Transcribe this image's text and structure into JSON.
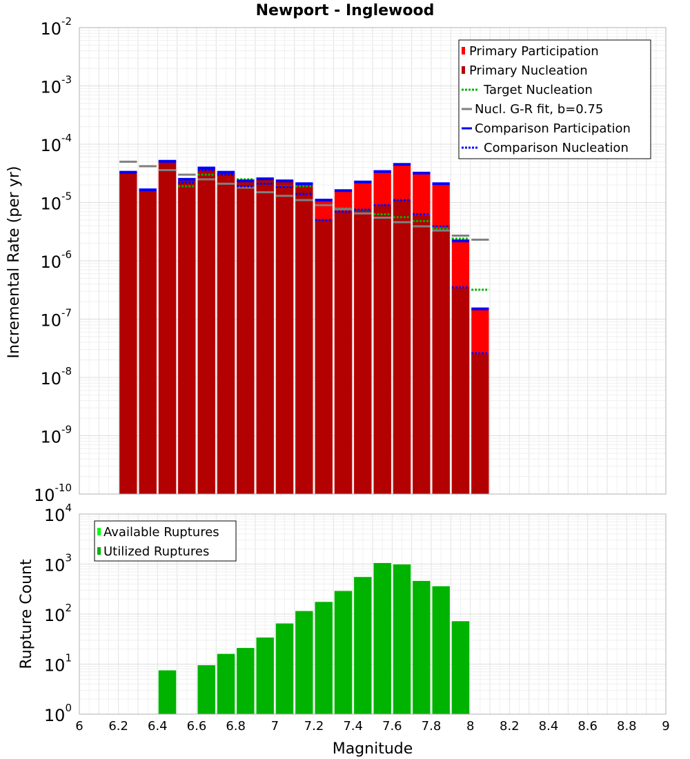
{
  "title": "Newport - Inglewood",
  "chart_data": [
    {
      "type": "bar",
      "panel": "top",
      "ylabel": "Incremental Rate (per yr)",
      "yscale": "log",
      "ylim": [
        1e-10,
        0.01
      ],
      "xlim": [
        6,
        9
      ],
      "grid": true,
      "legend_position": "top-right",
      "ytick_bases": [
        "10",
        "10",
        "10",
        "10",
        "10",
        "10",
        "10",
        "10",
        "10"
      ],
      "ytick_exponents": [
        "-10",
        "-9",
        "-8",
        "-7",
        "-6",
        "-5",
        "-4",
        "-3",
        "-2"
      ],
      "bin_width": 0.1,
      "x": [
        6.25,
        6.35,
        6.45,
        6.55,
        6.65,
        6.75,
        6.85,
        6.95,
        7.05,
        7.15,
        7.25,
        7.35,
        7.45,
        7.55,
        7.65,
        7.75,
        7.85,
        7.95,
        8.05
      ],
      "series": [
        {
          "name": "Primary Participation",
          "style": "bar",
          "color": "#ff0000",
          "values": [
            3.2e-05,
            1.6e-05,
            5e-05,
            2.4e-05,
            3.8e-05,
            3.2e-05,
            2.3e-05,
            2.5e-05,
            2.3e-05,
            2e-05,
            1.05e-05,
            1.55e-05,
            2.2e-05,
            3.3e-05,
            4.4e-05,
            3.1e-05,
            2.05e-05,
            2.1e-06,
            1.45e-07
          ]
        },
        {
          "name": "Primary Nucleation",
          "style": "bar",
          "color": "#b30000",
          "values": [
            3.2e-05,
            1.6e-05,
            5e-05,
            2.4e-05,
            3.8e-05,
            3.2e-05,
            2.3e-05,
            2.5e-05,
            2.3e-05,
            2e-05,
            5e-06,
            7e-06,
            7.5e-06,
            9e-06,
            1.1e-05,
            6e-06,
            3.6e-06,
            3.4e-07,
            2.5e-08
          ]
        },
        {
          "name": "Target Nucleation",
          "style": "dotted",
          "color": "#00b300",
          "values": [
            null,
            null,
            null,
            1.9e-05,
            3e-05,
            null,
            2.5e-05,
            2.1e-05,
            1.9e-05,
            1.9e-05,
            null,
            8e-06,
            7.4e-06,
            6.3e-06,
            5.6e-06,
            4.8e-06,
            3.6e-06,
            2.4e-06,
            3.2e-07
          ]
        },
        {
          "name": "Nucl. G-R fit, b=0.75",
          "style": "solid",
          "color": "#808080",
          "values": [
            5e-05,
            4.2e-05,
            3.6e-05,
            3e-05,
            2.5e-05,
            2.1e-05,
            1.8e-05,
            1.5e-05,
            1.3e-05,
            1.1e-05,
            9e-06,
            7.7e-06,
            6.5e-06,
            5.5e-06,
            4.6e-06,
            3.9e-06,
            3.3e-06,
            2.7e-06,
            2.3e-06
          ]
        },
        {
          "name": "Comparison Participation",
          "style": "solid",
          "color": "#0000ff",
          "values": [
            3.3e-05,
            1.65e-05,
            5.1e-05,
            2.5e-05,
            3.9e-05,
            3.3e-05,
            2.35e-05,
            2.55e-05,
            2.35e-05,
            2.1e-05,
            1.1e-05,
            1.6e-05,
            2.25e-05,
            3.4e-05,
            4.5e-05,
            3.2e-05,
            2.1e-05,
            2.2e-06,
            1.5e-07
          ]
        },
        {
          "name": "Comparison Nucleation",
          "style": "dotted",
          "color": "#0000ff",
          "values": [
            3.3e-05,
            1.65e-05,
            5.1e-05,
            2.2e-05,
            3.6e-05,
            3e-05,
            1.9e-05,
            2.1e-05,
            1.85e-05,
            1.4e-05,
            5e-06,
            7e-06,
            7.5e-06,
            9e-06,
            1.1e-05,
            6.3e-06,
            3.9e-06,
            3.5e-07,
            2.6e-08
          ]
        }
      ]
    },
    {
      "type": "bar",
      "panel": "bottom",
      "ylabel": "Rupture Count",
      "xlabel": "Magnitude",
      "yscale": "log",
      "ylim": [
        1,
        10000
      ],
      "xlim": [
        6,
        9
      ],
      "grid": true,
      "legend_position": "top-left",
      "ytick_bases": [
        "10",
        "10",
        "10",
        "10",
        "10"
      ],
      "ytick_exponents": [
        "0",
        "1",
        "2",
        "3",
        "4"
      ],
      "xticks": [
        "6",
        "6.2",
        "6.4",
        "6.6",
        "6.8",
        "7",
        "7.2",
        "7.4",
        "7.6",
        "7.8",
        "8",
        "8.2",
        "8.4",
        "8.6",
        "8.8",
        "9"
      ],
      "bin_width": 0.1,
      "x": [
        6.45,
        6.65,
        6.75,
        6.85,
        6.95,
        7.05,
        7.15,
        7.25,
        7.35,
        7.45,
        7.55,
        7.65,
        7.75,
        7.85,
        7.95
      ],
      "series": [
        {
          "name": "Available Ruptures",
          "color": "#00ff00",
          "values": [
            7.5,
            9.5,
            16,
            21,
            34,
            65,
            115,
            175,
            290,
            550,
            1050,
            980,
            460,
            360,
            72
          ]
        },
        {
          "name": "Utilized Ruptures",
          "color": "#00b300",
          "values": [
            7.5,
            9.5,
            16,
            21,
            34,
            65,
            115,
            175,
            290,
            550,
            1050,
            980,
            460,
            360,
            72
          ]
        }
      ]
    }
  ]
}
